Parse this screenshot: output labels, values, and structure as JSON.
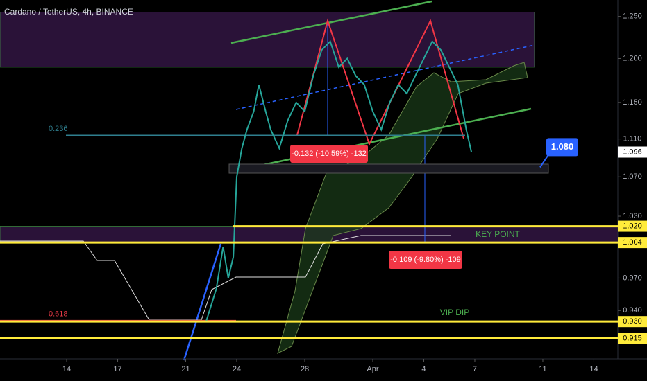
{
  "header": {
    "title": "Cardano / TetherUS, 4h, BINANCE"
  },
  "chart_data": {
    "type": "line",
    "color": "#26a69a",
    "log_scale": true,
    "x": [
      22.2,
      22.8,
      23.2,
      23.5,
      23.8,
      24.0,
      24.3,
      24.6,
      25.0,
      25.3,
      25.7,
      26.0,
      26.5,
      27.0,
      27.5,
      28.0,
      28.5,
      29.0,
      29.5,
      30.0,
      30.5,
      31.0,
      31.5,
      32.0,
      32.5,
      33.0,
      33.5,
      34.0,
      34.5,
      35.0,
      35.5,
      36.0,
      36.5,
      37.0,
      37.5,
      37.8
    ],
    "values": [
      0.93,
      0.96,
      1.0,
      0.97,
      0.99,
      1.07,
      1.1,
      1.12,
      1.14,
      1.17,
      1.14,
      1.12,
      1.1,
      1.13,
      1.15,
      1.14,
      1.18,
      1.21,
      1.22,
      1.19,
      1.2,
      1.18,
      1.17,
      1.14,
      1.12,
      1.15,
      1.17,
      1.16,
      1.18,
      1.2,
      1.22,
      1.21,
      1.19,
      1.17,
      1.12,
      1.096
    ],
    "xlim": [
      10.08,
      46.41
    ],
    "xticks": [
      14,
      17,
      21,
      24,
      28,
      {
        "value": 32,
        "label": "Apr"
      },
      {
        "value": 35,
        "label": "4"
      },
      {
        "value": 38,
        "label": "7"
      },
      {
        "value": 42,
        "label": "11"
      },
      {
        "value": 45,
        "label": "14"
      }
    ],
    "ylim": [
      0.897,
      1.27
    ],
    "yticks": [
      {
        "value": 1.25,
        "label": "1.250"
      },
      {
        "value": 1.2,
        "label": "1.200"
      },
      {
        "value": 1.15,
        "label": "1.150"
      },
      {
        "value": 1.11,
        "label": "1.110"
      },
      {
        "value": 1.07,
        "label": "1.070"
      },
      {
        "value": 1.03,
        "label": "1.030"
      },
      {
        "value": 0.97,
        "label": "0.970"
      },
      {
        "value": 0.94,
        "label": "0.940"
      }
    ],
    "zones": [
      [
        1.19,
        1.255
      ],
      [
        1.004,
        1.02
      ]
    ],
    "zone_color": "#2a1238",
    "levels": [
      {
        "value": 1.02,
        "label": "1.020"
      },
      {
        "value": 1.004,
        "label": "1.004"
      },
      {
        "value": 0.93,
        "label": "0.930"
      },
      {
        "value": 0.915,
        "label": "0.915"
      }
    ],
    "level_color": "#ffeb3b",
    "last_price": {
      "value": 1.096,
      "label": "1.096"
    },
    "fib": [
      {
        "level": 0.236,
        "price": 1.114,
        "color": "#2f7f8f"
      },
      {
        "level": 0.618,
        "price": 0.931,
        "color": "#e53946"
      }
    ],
    "target": {
      "value": 1.08,
      "label": "1.080"
    },
    "annotations": [
      "KEY POINT",
      "VIP DIP"
    ],
    "measures": [
      "-0.132 (-10.59%) -132",
      "-0.109 (-9.80%) -109"
    ]
  }
}
